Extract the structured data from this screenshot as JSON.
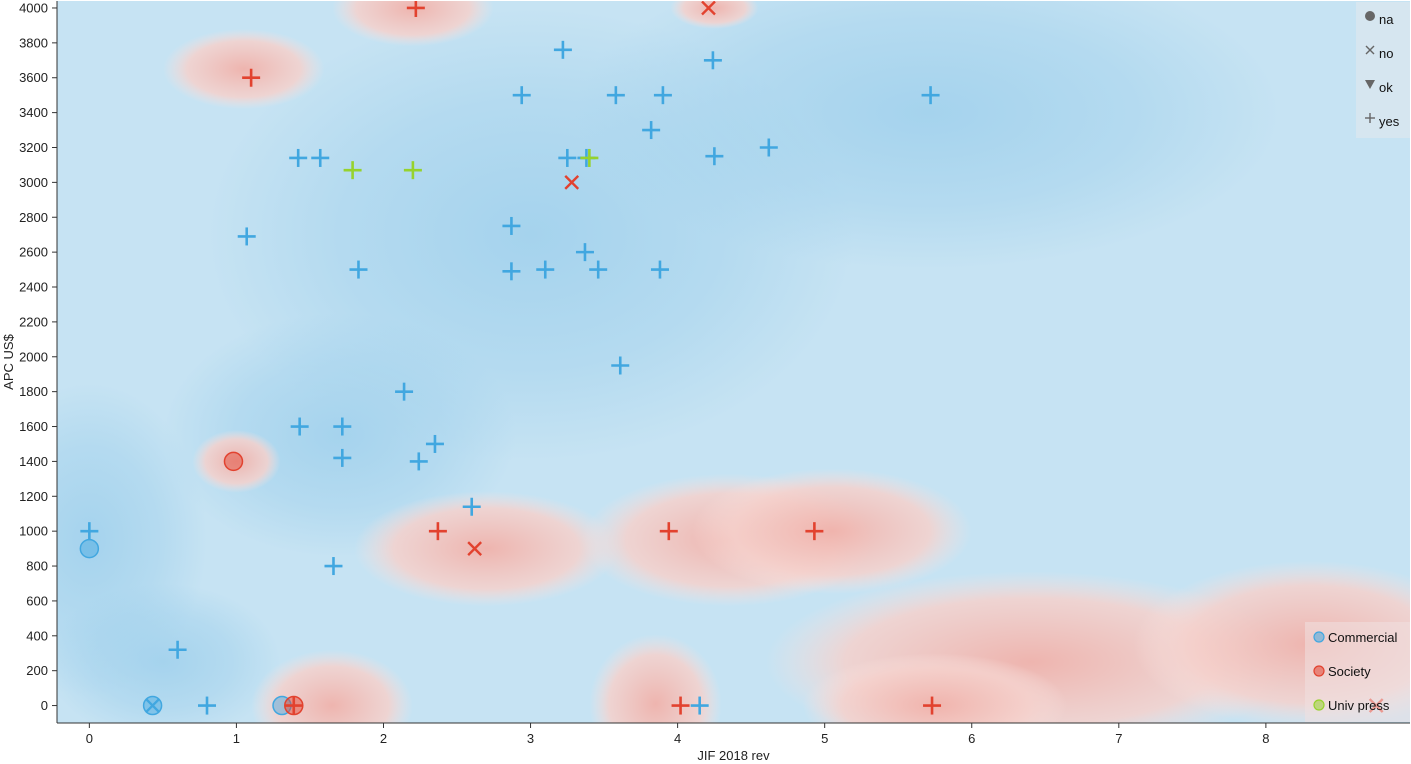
{
  "chart_data": {
    "type": "scatter",
    "xlabel": "JIF 2018 rev",
    "ylabel": "APC US$",
    "xlim": [
      -0.22,
      8.98
    ],
    "ylim": [
      -100,
      4040
    ],
    "x_ticks": [
      0,
      1,
      2,
      3,
      4,
      5,
      6,
      7,
      8
    ],
    "y_ticks": [
      0,
      200,
      400,
      600,
      800,
      1000,
      1200,
      1400,
      1600,
      1800,
      2000,
      2200,
      2400,
      2600,
      2800,
      3000,
      3200,
      3400,
      3600,
      3800,
      4000
    ],
    "background": "class-probability heat map (blue = Commercial, red = Society)",
    "colors": {
      "Commercial": "#41a7e0",
      "Society": "#e2422f",
      "Univ press": "#96d22e",
      "heat_blue": "#9fd0ec",
      "heat_red": "#f2b9b3"
    },
    "shape_legend": {
      "placement": "top-right",
      "entries": [
        {
          "label": "na",
          "symbol": "circle"
        },
        {
          "label": "no",
          "symbol": "x"
        },
        {
          "label": "ok",
          "symbol": "triangle"
        },
        {
          "label": "yes",
          "symbol": "plus"
        }
      ]
    },
    "color_legend": {
      "placement": "bottom-right",
      "entries": [
        {
          "label": "Commercial",
          "color": "#41a7e0"
        },
        {
          "label": "Society",
          "color": "#e2422f"
        },
        {
          "label": "Univ press",
          "color": "#96d22e"
        }
      ]
    },
    "heat_regions": [
      {
        "cls": "Society",
        "x": 2.2,
        "y": 4000,
        "rx": 0.55,
        "ry": 220
      },
      {
        "cls": "Society",
        "x": 1.05,
        "y": 3650,
        "rx": 0.55,
        "ry": 230
      },
      {
        "cls": "Society",
        "x": 4.25,
        "y": 4000,
        "rx": 0.3,
        "ry": 120
      },
      {
        "cls": "Society",
        "x": 1.0,
        "y": 1400,
        "rx": 0.3,
        "ry": 180
      },
      {
        "cls": "Society",
        "x": 1.65,
        "y": 0,
        "rx": 0.55,
        "ry": 320
      },
      {
        "cls": "Society",
        "x": 3.85,
        "y": 10,
        "rx": 0.45,
        "ry": 400
      },
      {
        "cls": "Society",
        "x": 2.7,
        "y": 900,
        "rx": 0.9,
        "ry": 330
      },
      {
        "cls": "Society",
        "x": 4.35,
        "y": 950,
        "rx": 1.0,
        "ry": 380
      },
      {
        "cls": "Society",
        "x": 5.05,
        "y": 1000,
        "rx": 0.95,
        "ry": 360
      },
      {
        "cls": "Society",
        "x": 6.4,
        "y": 250,
        "rx": 1.8,
        "ry": 520
      },
      {
        "cls": "Society",
        "x": 8.3,
        "y": 350,
        "rx": 1.2,
        "ry": 480
      },
      {
        "cls": "Society",
        "x": 5.75,
        "y": 0,
        "rx": 0.9,
        "ry": 300
      },
      {
        "cls": "Commercial",
        "x": 0.0,
        "y": 950,
        "rx": 0.8,
        "ry": 900
      },
      {
        "cls": "Commercial",
        "x": 3.0,
        "y": 2700,
        "rx": 2.2,
        "ry": 1300
      },
      {
        "cls": "Commercial",
        "x": 5.7,
        "y": 3400,
        "rx": 2.4,
        "ry": 900
      },
      {
        "cls": "Commercial",
        "x": 1.7,
        "y": 1550,
        "rx": 1.2,
        "ry": 700
      },
      {
        "cls": "Commercial",
        "x": 0.5,
        "y": 250,
        "rx": 0.8,
        "ry": 450
      }
    ],
    "points": [
      {
        "x": 0.0,
        "y": 1000,
        "group": "Commercial",
        "status": "yes"
      },
      {
        "x": 0.0,
        "y": 900,
        "group": "Commercial",
        "status": "na"
      },
      {
        "x": 0.43,
        "y": 0,
        "group": "Commercial",
        "status": "na"
      },
      {
        "x": 0.43,
        "y": 0,
        "group": "Commercial",
        "status": "no"
      },
      {
        "x": 0.6,
        "y": 320,
        "group": "Commercial",
        "status": "yes"
      },
      {
        "x": 0.8,
        "y": 0,
        "group": "Commercial",
        "status": "yes"
      },
      {
        "x": 0.98,
        "y": 1400,
        "group": "Society",
        "status": "na"
      },
      {
        "x": 1.07,
        "y": 2690,
        "group": "Commercial",
        "status": "yes"
      },
      {
        "x": 1.1,
        "y": 3600,
        "group": "Society",
        "status": "yes"
      },
      {
        "x": 1.31,
        "y": 0,
        "group": "Commercial",
        "status": "na"
      },
      {
        "x": 1.39,
        "y": 0,
        "group": "Society",
        "status": "na"
      },
      {
        "x": 1.39,
        "y": 0,
        "group": "Society",
        "status": "yes"
      },
      {
        "x": 1.42,
        "y": 3140,
        "group": "Commercial",
        "status": "yes"
      },
      {
        "x": 1.43,
        "y": 1600,
        "group": "Commercial",
        "status": "yes"
      },
      {
        "x": 1.57,
        "y": 3140,
        "group": "Commercial",
        "status": "yes"
      },
      {
        "x": 1.66,
        "y": 800,
        "group": "Commercial",
        "status": "yes"
      },
      {
        "x": 1.72,
        "y": 1600,
        "group": "Commercial",
        "status": "yes"
      },
      {
        "x": 1.72,
        "y": 1420,
        "group": "Commercial",
        "status": "yes"
      },
      {
        "x": 1.79,
        "y": 3070,
        "group": "Univ press",
        "status": "yes"
      },
      {
        "x": 1.83,
        "y": 2500,
        "group": "Commercial",
        "status": "yes"
      },
      {
        "x": 2.14,
        "y": 1800,
        "group": "Commercial",
        "status": "yes"
      },
      {
        "x": 2.2,
        "y": 3070,
        "group": "Univ press",
        "status": "yes"
      },
      {
        "x": 2.22,
        "y": 4000,
        "group": "Society",
        "status": "yes"
      },
      {
        "x": 2.24,
        "y": 1400,
        "group": "Commercial",
        "status": "yes"
      },
      {
        "x": 2.35,
        "y": 1500,
        "group": "Commercial",
        "status": "yes"
      },
      {
        "x": 2.37,
        "y": 1000,
        "group": "Society",
        "status": "yes"
      },
      {
        "x": 2.6,
        "y": 1140,
        "group": "Commercial",
        "status": "yes"
      },
      {
        "x": 2.62,
        "y": 900,
        "group": "Society",
        "status": "no"
      },
      {
        "x": 2.87,
        "y": 2750,
        "group": "Commercial",
        "status": "yes"
      },
      {
        "x": 2.87,
        "y": 2490,
        "group": "Commercial",
        "status": "yes"
      },
      {
        "x": 2.94,
        "y": 3500,
        "group": "Commercial",
        "status": "yes"
      },
      {
        "x": 3.1,
        "y": 2500,
        "group": "Commercial",
        "status": "yes"
      },
      {
        "x": 3.22,
        "y": 3760,
        "group": "Commercial",
        "status": "yes"
      },
      {
        "x": 3.25,
        "y": 3140,
        "group": "Commercial",
        "status": "yes"
      },
      {
        "x": 3.28,
        "y": 3000,
        "group": "Society",
        "status": "no"
      },
      {
        "x": 3.37,
        "y": 2600,
        "group": "Commercial",
        "status": "yes"
      },
      {
        "x": 3.38,
        "y": 3140,
        "group": "Commercial",
        "status": "yes"
      },
      {
        "x": 3.4,
        "y": 3140,
        "group": "Univ press",
        "status": "yes"
      },
      {
        "x": 3.46,
        "y": 2500,
        "group": "Commercial",
        "status": "yes"
      },
      {
        "x": 3.58,
        "y": 3500,
        "group": "Commercial",
        "status": "yes"
      },
      {
        "x": 3.61,
        "y": 1950,
        "group": "Commercial",
        "status": "yes"
      },
      {
        "x": 3.82,
        "y": 3300,
        "group": "Commercial",
        "status": "yes"
      },
      {
        "x": 3.88,
        "y": 2500,
        "group": "Commercial",
        "status": "yes"
      },
      {
        "x": 3.9,
        "y": 3500,
        "group": "Commercial",
        "status": "yes"
      },
      {
        "x": 3.94,
        "y": 1000,
        "group": "Society",
        "status": "yes"
      },
      {
        "x": 4.02,
        "y": 0,
        "group": "Society",
        "status": "yes"
      },
      {
        "x": 4.15,
        "y": 0,
        "group": "Commercial",
        "status": "yes"
      },
      {
        "x": 4.21,
        "y": 4000,
        "group": "Society",
        "status": "no"
      },
      {
        "x": 4.24,
        "y": 3700,
        "group": "Commercial",
        "status": "yes"
      },
      {
        "x": 4.25,
        "y": 3150,
        "group": "Commercial",
        "status": "yes"
      },
      {
        "x": 4.62,
        "y": 3200,
        "group": "Commercial",
        "status": "yes"
      },
      {
        "x": 4.93,
        "y": 1000,
        "group": "Society",
        "status": "yes"
      },
      {
        "x": 5.72,
        "y": 3500,
        "group": "Commercial",
        "status": "yes"
      },
      {
        "x": 5.73,
        "y": 0,
        "group": "Society",
        "status": "yes"
      },
      {
        "x": 8.75,
        "y": 0,
        "group": "Society",
        "status": "no"
      }
    ]
  }
}
